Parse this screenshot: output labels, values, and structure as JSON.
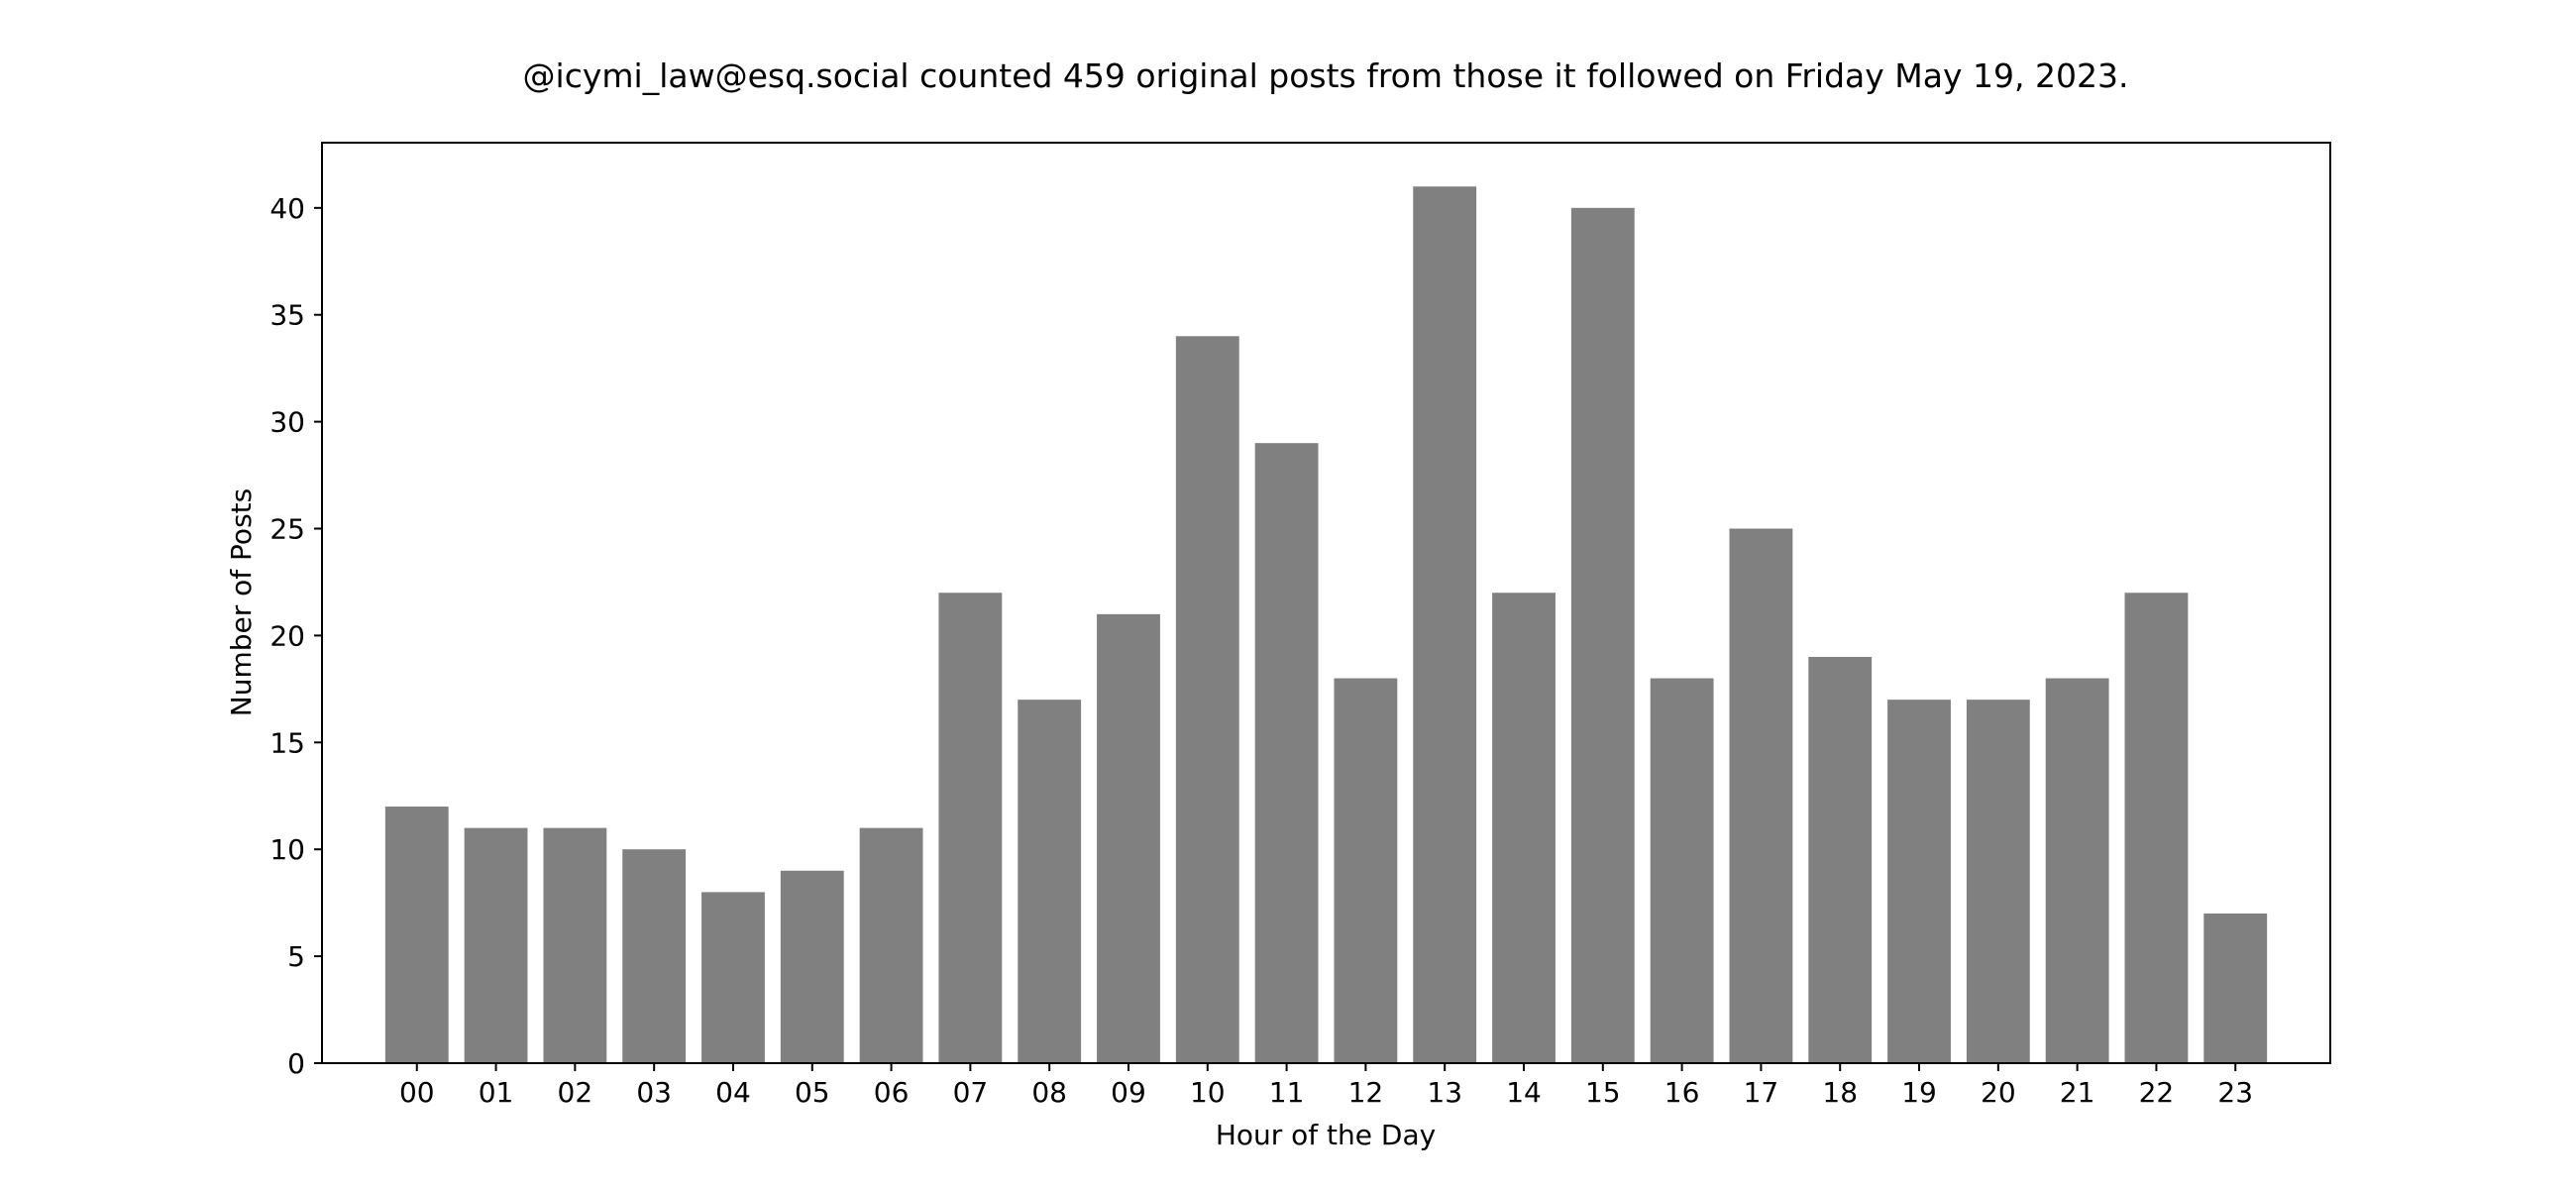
{
  "chart_data": {
    "type": "bar",
    "title": "@icymi_law@esq.social counted 459 original posts from those it followed on Friday May 19, 2023.",
    "xlabel": "Hour of the Day",
    "ylabel": "Number of Posts",
    "categories": [
      "00",
      "01",
      "02",
      "03",
      "04",
      "05",
      "06",
      "07",
      "08",
      "09",
      "10",
      "11",
      "12",
      "13",
      "14",
      "15",
      "16",
      "17",
      "18",
      "19",
      "20",
      "21",
      "22",
      "23"
    ],
    "values": [
      12,
      11,
      11,
      10,
      8,
      9,
      11,
      22,
      17,
      21,
      34,
      29,
      18,
      41,
      22,
      40,
      18,
      25,
      19,
      17,
      17,
      18,
      22,
      7
    ],
    "ylim": [
      0,
      43.05
    ],
    "yticks": [
      0,
      5,
      10,
      15,
      20,
      25,
      30,
      35,
      40
    ],
    "bar_color": "#808080",
    "grid": false,
    "legend": "none"
  }
}
